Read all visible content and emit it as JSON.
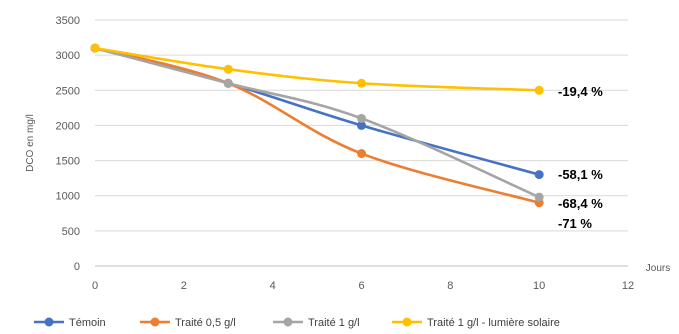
{
  "chart_data": {
    "type": "line",
    "title": "",
    "xlabel": "Jours",
    "ylabel": "DCO en mg/l",
    "xlim": [
      0,
      12
    ],
    "ylim": [
      0,
      3500
    ],
    "x_ticks": [
      0,
      2,
      4,
      6,
      8,
      10,
      12
    ],
    "y_ticks": [
      0,
      500,
      1000,
      1500,
      2000,
      2500,
      3000,
      3500
    ],
    "grid": "horizontal",
    "legend_position": "bottom",
    "series": [
      {
        "name": "Témoin",
        "color": "#4472c4",
        "x": [
          0,
          3,
          6,
          10
        ],
        "y": [
          3100,
          2600,
          2000,
          1300
        ]
      },
      {
        "name": "Traité 0,5 g/l",
        "color": "#ed7d31",
        "x": [
          0,
          3,
          6,
          10
        ],
        "y": [
          3100,
          2600,
          1600,
          900
        ]
      },
      {
        "name": "Traité 1 g/l",
        "color": "#a5a5a5",
        "x": [
          0,
          3,
          6,
          10
        ],
        "y": [
          3100,
          2600,
          2100,
          980
        ]
      },
      {
        "name": "Traité 1 g/l - lumière solaire",
        "color": "#ffc000",
        "x": [
          0,
          3,
          6,
          10
        ],
        "y": [
          3100,
          2800,
          2600,
          2500
        ]
      }
    ],
    "annotations": [
      {
        "text": "-19,4 %",
        "x": 10,
        "y": 2500
      },
      {
        "text": "-58,1 %",
        "x": 10,
        "y": 1300
      },
      {
        "text": "-68,4 %",
        "x": 10,
        "y": 980
      },
      {
        "text": "-71 %",
        "x": 10,
        "y": 640
      }
    ]
  }
}
